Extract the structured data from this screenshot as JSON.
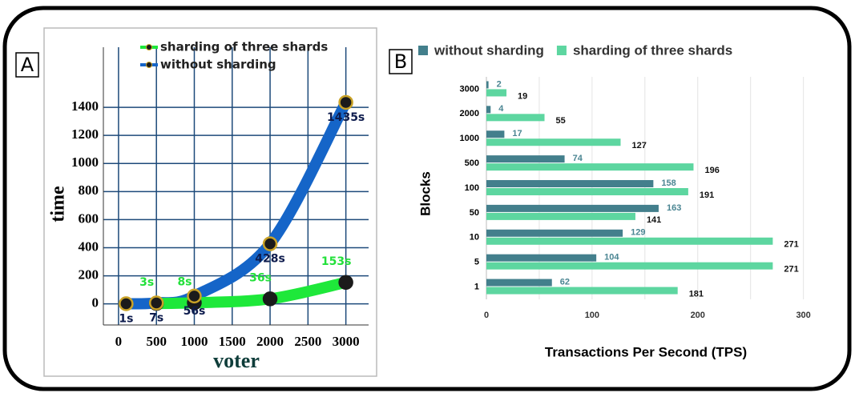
{
  "chart_data": [
    {
      "type": "line",
      "panel": "A",
      "xlabel": "voter",
      "ylabel": "time",
      "xlim": [
        -200,
        3300
      ],
      "ylim": [
        -150,
        1600
      ],
      "xticks": [
        0,
        500,
        1000,
        1500,
        2000,
        2500,
        3000
      ],
      "yticks": [
        0,
        200,
        400,
        600,
        800,
        1000,
        1200,
        1400
      ],
      "grid": true,
      "series": [
        {
          "name": "sharding of three shards",
          "color": "#1ee83a",
          "label_color": "#22e03a",
          "x": [
            500,
            1000,
            2000,
            3000
          ],
          "values": [
            3,
            8,
            36,
            153
          ],
          "value_labels": [
            "3s",
            "8s",
            "36s",
            "153s"
          ]
        },
        {
          "name": "without sharding",
          "color": "#1565c8",
          "label_color": "#0d1b4d",
          "x": [
            100,
            500,
            1000,
            2000,
            3000
          ],
          "values": [
            1,
            7,
            56,
            428,
            1435
          ],
          "value_labels": [
            "1s",
            "7s",
            "56s",
            "428s",
            "1435s"
          ]
        }
      ]
    },
    {
      "type": "barh",
      "panel": "B",
      "xlabel": "Transactions Per Second (TPS)",
      "ylabel": "Blocks",
      "xlim": [
        0,
        320
      ],
      "xticks": [
        0,
        100,
        200,
        300
      ],
      "grid_xticks": [
        0,
        50,
        100,
        150,
        200,
        250,
        300
      ],
      "categories": [
        "3000",
        "2000",
        "1000",
        "500",
        "100",
        "50",
        "10",
        "5",
        "1"
      ],
      "series": [
        {
          "name": "without sharding",
          "color": "#437f8c",
          "label_color": "#4a8592",
          "values": [
            2,
            4,
            17,
            74,
            158,
            163,
            129,
            104,
            62
          ]
        },
        {
          "name": "sharding of three shards",
          "color": "#5dd6a0",
          "label_color": "#111",
          "values": [
            19,
            55,
            127,
            196,
            191,
            141,
            271,
            271,
            181
          ]
        }
      ]
    }
  ]
}
